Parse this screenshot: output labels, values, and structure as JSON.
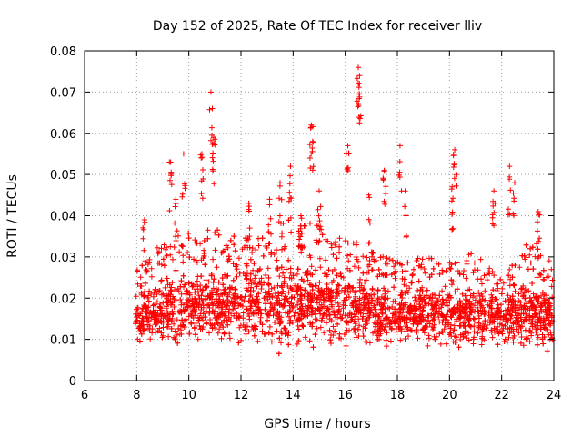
{
  "chart_data": {
    "type": "scatter",
    "title": "Day 152 of 2025, Rate Of TEC Index for receiver lliv",
    "xlabel": "GPS time / hours",
    "ylabel": "ROTI / TECUs",
    "xlim": [
      6,
      24
    ],
    "ylim": [
      0,
      0.08
    ],
    "xticks": [
      6,
      8,
      10,
      12,
      14,
      16,
      18,
      20,
      22,
      24
    ],
    "xtick_labels": [
      "6",
      "8",
      "10",
      "12",
      "14",
      "16",
      "18",
      "20",
      "22",
      "24"
    ],
    "yticks": [
      0,
      0.01,
      0.02,
      0.03,
      0.04,
      0.05,
      0.06,
      0.07,
      0.08
    ],
    "ytick_labels": [
      "0",
      "0.01",
      "0.02",
      "0.03",
      "0.04",
      "0.05",
      "0.06",
      "0.07",
      "0.08"
    ],
    "grid": true,
    "marker": "+",
    "color": "#ff0000",
    "series": [
      {
        "name": "ROTI",
        "x_range": [
          7.95,
          24.0
        ],
        "band": {
          "hours": [
            8,
            9,
            10,
            11,
            12,
            13,
            14,
            15,
            16,
            17,
            18,
            19,
            20,
            21,
            22,
            23,
            24
          ],
          "median": [
            0.016,
            0.017,
            0.018,
            0.019,
            0.018,
            0.019,
            0.019,
            0.019,
            0.018,
            0.017,
            0.016,
            0.017,
            0.016,
            0.016,
            0.015,
            0.016,
            0.015
          ],
          "upper": [
            0.027,
            0.034,
            0.036,
            0.037,
            0.035,
            0.036,
            0.04,
            0.038,
            0.035,
            0.032,
            0.029,
            0.03,
            0.031,
            0.031,
            0.025,
            0.035,
            0.03
          ],
          "lower": [
            0.007,
            0.007,
            0.007,
            0.007,
            0.006,
            0.006,
            0.006,
            0.006,
            0.007,
            0.007,
            0.008,
            0.008,
            0.007,
            0.007,
            0.007,
            0.006,
            0.006
          ]
        },
        "peaks": [
          {
            "x": 8.3,
            "y": 0.039
          },
          {
            "x": 9.3,
            "y": 0.053
          },
          {
            "x": 9.5,
            "y": 0.044
          },
          {
            "x": 9.8,
            "y": 0.055
          },
          {
            "x": 10.5,
            "y": 0.055
          },
          {
            "x": 10.85,
            "y": 0.07
          },
          {
            "x": 10.9,
            "y": 0.066
          },
          {
            "x": 10.95,
            "y": 0.059
          },
          {
            "x": 12.3,
            "y": 0.043
          },
          {
            "x": 13.1,
            "y": 0.044
          },
          {
            "x": 13.5,
            "y": 0.048
          },
          {
            "x": 13.9,
            "y": 0.052
          },
          {
            "x": 14.3,
            "y": 0.04
          },
          {
            "x": 14.7,
            "y": 0.062
          },
          {
            "x": 14.75,
            "y": 0.058
          },
          {
            "x": 15.0,
            "y": 0.046
          },
          {
            "x": 16.1,
            "y": 0.057
          },
          {
            "x": 16.5,
            "y": 0.076
          },
          {
            "x": 16.55,
            "y": 0.074
          },
          {
            "x": 16.9,
            "y": 0.045
          },
          {
            "x": 17.5,
            "y": 0.051
          },
          {
            "x": 18.1,
            "y": 0.057
          },
          {
            "x": 18.3,
            "y": 0.046
          },
          {
            "x": 20.2,
            "y": 0.056
          },
          {
            "x": 20.1,
            "y": 0.047
          },
          {
            "x": 21.7,
            "y": 0.046
          },
          {
            "x": 22.3,
            "y": 0.052
          },
          {
            "x": 22.5,
            "y": 0.048
          },
          {
            "x": 23.4,
            "y": 0.041
          }
        ]
      }
    ]
  }
}
